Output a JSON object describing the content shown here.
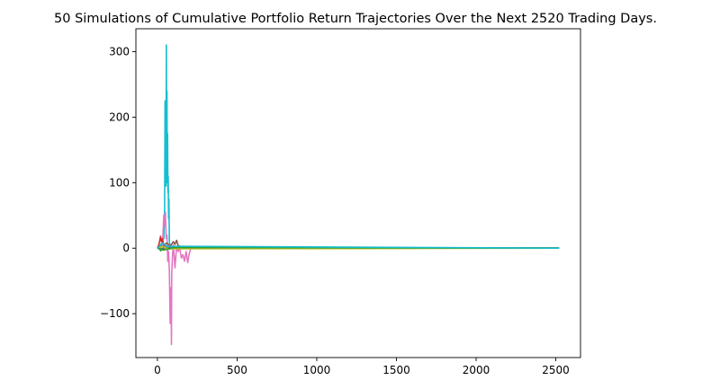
{
  "chart_data": {
    "type": "line",
    "title": "50 Simulations of Cumulative Portfolio Return Trajectories Over the Next 2520 Trading Days.",
    "xlabel": "",
    "ylabel": "",
    "xlim": [
      -135,
      2655
    ],
    "ylim": [
      -167,
      335
    ],
    "xticks": [
      0,
      500,
      1000,
      1500,
      2000,
      2500
    ],
    "yticks": [
      -100,
      0,
      100,
      200,
      300
    ],
    "grid": false,
    "legend": "none",
    "series": [
      {
        "color": "#17becf",
        "x": [
          0,
          10,
          20,
          30,
          40,
          45,
          48,
          50,
          52,
          54,
          56,
          58,
          60,
          62,
          64,
          66,
          68,
          70,
          72,
          75,
          80,
          90,
          100,
          150,
          300,
          2520
        ],
        "y": [
          0,
          2,
          5,
          8,
          15,
          60,
          225,
          150,
          165,
          95,
          310,
          110,
          240,
          100,
          175,
          85,
          110,
          45,
          75,
          10,
          2,
          0,
          0,
          0,
          0,
          0
        ]
      },
      {
        "color": "#e377c2",
        "x": [
          0,
          20,
          30,
          35,
          40,
          45,
          50,
          55,
          60,
          65,
          70,
          75,
          80,
          85,
          88,
          90,
          95,
          100,
          110,
          120,
          130,
          140,
          150,
          160,
          170,
          180,
          190,
          200,
          210,
          250,
          2520
        ],
        "y": [
          0,
          3,
          8,
          20,
          50,
          35,
          55,
          15,
          20,
          -20,
          -5,
          -35,
          -115,
          -60,
          -147,
          -40,
          -10,
          5,
          -30,
          2,
          -5,
          0,
          -15,
          -10,
          -20,
          -5,
          -22,
          -8,
          0,
          0,
          0
        ]
      },
      {
        "color": "#8c564b",
        "x": [
          0,
          20,
          40,
          60,
          80,
          100,
          110,
          120,
          130,
          150,
          200,
          2520
        ],
        "y": [
          0,
          2,
          5,
          8,
          3,
          10,
          6,
          12,
          4,
          2,
          0,
          0
        ]
      },
      {
        "color": "#d62728",
        "x": [
          0,
          10,
          20,
          25,
          30,
          40,
          60,
          80,
          120,
          2520
        ],
        "y": [
          0,
          6,
          18,
          10,
          14,
          5,
          3,
          1,
          0,
          0
        ]
      },
      {
        "color": "#2ca02c",
        "x": [
          0,
          10,
          20,
          40,
          60,
          100,
          2520
        ],
        "y": [
          0,
          3,
          -4,
          2,
          -2,
          0,
          0
        ]
      },
      {
        "color": "#7f7f7f",
        "x": [
          0,
          10,
          20,
          50,
          80,
          2520
        ],
        "y": [
          0,
          2,
          4,
          1,
          0,
          0
        ]
      },
      {
        "color": "#ff7f0e",
        "x": [
          0,
          15,
          30,
          60,
          2520
        ],
        "y": [
          0,
          4,
          -3,
          1,
          0
        ]
      },
      {
        "color": "#1f77b4",
        "x": [
          0,
          20,
          50,
          2520
        ],
        "y": [
          0,
          -2,
          1,
          0
        ]
      },
      {
        "color": "#9467bd",
        "x": [
          0,
          25,
          60,
          2520
        ],
        "y": [
          0,
          5,
          0,
          0
        ]
      },
      {
        "color": "#bcbd22",
        "x": [
          0,
          30,
          70,
          2520
        ],
        "y": [
          0,
          3,
          -1,
          0
        ]
      },
      {
        "color": "#2ca02c",
        "x": [
          0,
          40,
          100,
          2520
        ],
        "y": [
          0,
          -3,
          1,
          0
        ]
      },
      {
        "color": "#17becf",
        "x": [
          0,
          10,
          30,
          60,
          2520
        ],
        "y": [
          0,
          2,
          8,
          3,
          0
        ]
      }
    ]
  }
}
